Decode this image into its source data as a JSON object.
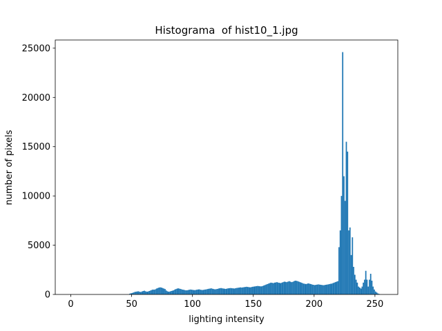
{
  "chart_data": {
    "type": "histogram",
    "title": "Histograma  of hist10_1.jpg",
    "x_label": "lighting intensity",
    "y_label": "number of pixels",
    "color": "#1f77b4",
    "bins": [
      0,
      1,
      2,
      3,
      4,
      5,
      6,
      7,
      8,
      9,
      10,
      11,
      12,
      13,
      14,
      15,
      16,
      17,
      18,
      19,
      20,
      21,
      22,
      23,
      24,
      25,
      26,
      27,
      28,
      29,
      30,
      31,
      32,
      33,
      34,
      35,
      36,
      37,
      38,
      39,
      40,
      41,
      42,
      43,
      44,
      45,
      46,
      47,
      48,
      49,
      50,
      51,
      52,
      53,
      54,
      55,
      56,
      57,
      58,
      59,
      60,
      61,
      62,
      63,
      64,
      65,
      66,
      67,
      68,
      69,
      70,
      71,
      72,
      73,
      74,
      75,
      76,
      77,
      78,
      79,
      80,
      81,
      82,
      83,
      84,
      85,
      86,
      87,
      88,
      89,
      90,
      91,
      92,
      93,
      94,
      95,
      96,
      97,
      98,
      99,
      100,
      101,
      102,
      103,
      104,
      105,
      106,
      107,
      108,
      109,
      110,
      111,
      112,
      113,
      114,
      115,
      116,
      117,
      118,
      119,
      120,
      121,
      122,
      123,
      124,
      125,
      126,
      127,
      128,
      129,
      130,
      131,
      132,
      133,
      134,
      135,
      136,
      137,
      138,
      139,
      140,
      141,
      142,
      143,
      144,
      145,
      146,
      147,
      148,
      149,
      150,
      151,
      152,
      153,
      154,
      155,
      156,
      157,
      158,
      159,
      160,
      161,
      162,
      163,
      164,
      165,
      166,
      167,
      168,
      169,
      170,
      171,
      172,
      173,
      174,
      175,
      176,
      177,
      178,
      179,
      180,
      181,
      182,
      183,
      184,
      185,
      186,
      187,
      188,
      189,
      190,
      191,
      192,
      193,
      194,
      195,
      196,
      197,
      198,
      199,
      200,
      201,
      202,
      203,
      204,
      205,
      206,
      207,
      208,
      209,
      210,
      211,
      212,
      213,
      214,
      215,
      216,
      217,
      218,
      219,
      220,
      221,
      222,
      223,
      224,
      225,
      226,
      227,
      228,
      229,
      230,
      231,
      232,
      233,
      234,
      235,
      236,
      237,
      238,
      239,
      240,
      241,
      242,
      243,
      244,
      245,
      246,
      247,
      248,
      249,
      250,
      251,
      252,
      253,
      254,
      255,
      256
    ],
    "counts": [
      0,
      0,
      0,
      0,
      0,
      0,
      0,
      0,
      0,
      0,
      0,
      0,
      0,
      0,
      0,
      0,
      0,
      0,
      0,
      0,
      0,
      0,
      0,
      0,
      0,
      0,
      0,
      0,
      0,
      0,
      0,
      0,
      0,
      0,
      0,
      0,
      0,
      0,
      0,
      0,
      0,
      0,
      0,
      0,
      0,
      0,
      0,
      0,
      80,
      120,
      150,
      200,
      250,
      280,
      300,
      320,
      280,
      250,
      300,
      350,
      380,
      320,
      280,
      300,
      350,
      400,
      450,
      500,
      480,
      520,
      600,
      650,
      700,
      720,
      700,
      650,
      600,
      550,
      400,
      320,
      280,
      300,
      350,
      380,
      420,
      500,
      550,
      600,
      620,
      580,
      550,
      500,
      480,
      450,
      420,
      420,
      450,
      480,
      500,
      480,
      460,
      440,
      450,
      480,
      500,
      520,
      480,
      460,
      450,
      480,
      500,
      520,
      550,
      580,
      600,
      620,
      580,
      550,
      520,
      540,
      560,
      600,
      630,
      650,
      620,
      600,
      580,
      560,
      600,
      620,
      640,
      650,
      630,
      620,
      600,
      640,
      660,
      680,
      700,
      720,
      700,
      720,
      740,
      760,
      780,
      760,
      740,
      720,
      750,
      780,
      800,
      820,
      840,
      860,
      850,
      830,
      820,
      850,
      900,
      950,
      1000,
      1050,
      1100,
      1150,
      1200,
      1180,
      1150,
      1200,
      1220,
      1250,
      1200,
      1180,
      1150,
      1200,
      1250,
      1300,
      1280,
      1250,
      1300,
      1350,
      1300,
      1250,
      1280,
      1350,
      1400,
      1380,
      1350,
      1300,
      1250,
      1200,
      1150,
      1100,
      1080,
      1050,
      1100,
      1120,
      1080,
      1050,
      1000,
      980,
      950,
      980,
      1000,
      1020,
      1000,
      980,
      960,
      940,
      950,
      980,
      1000,
      1020,
      1050,
      1080,
      1100,
      1150,
      1200,
      1250,
      1300,
      1350,
      4800,
      6500,
      10000,
      24600,
      12000,
      9500,
      15500,
      14500,
      6500,
      6800,
      4000,
      5800,
      2800,
      2000,
      1500,
      1200,
      800,
      700,
      600,
      800,
      1200,
      1500,
      2400,
      1500,
      800,
      1500,
      2100,
      1400,
      800,
      500,
      300,
      200,
      100,
      50,
      0,
      0
    ],
    "xlim": [
      -12.8,
      268.8
    ],
    "xticks": [
      0,
      50,
      100,
      150,
      200,
      250
    ],
    "ylim": [
      0,
      25830
    ],
    "yticks": [
      0,
      5000,
      10000,
      15000,
      20000,
      25000
    ]
  }
}
